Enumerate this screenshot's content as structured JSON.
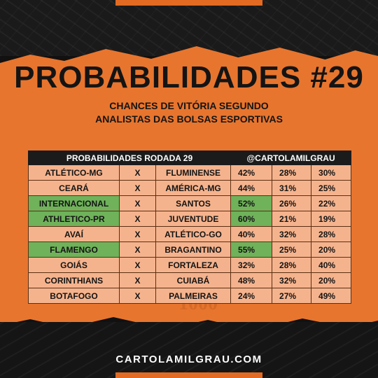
{
  "title": "PROBABILIDADES #29",
  "subtitle_line1": "CHANCES DE VITÓRIA SEGUNDO",
  "subtitle_line2": "ANALISTAS DAS BOLSAS ESPORTIVAS",
  "table": {
    "header_left": "PROBABILIDADES RODADA 29",
    "header_right": "@CARTOLAMILGRAU",
    "rows": [
      {
        "home": "ATLÉTICO-MG",
        "vs": "X",
        "away": "FLUMINENSE",
        "p1": "42%",
        "p2": "28%",
        "p3": "30%",
        "home_highlight": false,
        "p1_highlight": false
      },
      {
        "home": "CEARÁ",
        "vs": "X",
        "away": "AMÉRICA-MG",
        "p1": "44%",
        "p2": "31%",
        "p3": "25%",
        "home_highlight": false,
        "p1_highlight": false
      },
      {
        "home": "INTERNACIONAL",
        "vs": "X",
        "away": "SANTOS",
        "p1": "52%",
        "p2": "26%",
        "p3": "22%",
        "home_highlight": true,
        "p1_highlight": true
      },
      {
        "home": "ATHLETICO-PR",
        "vs": "X",
        "away": "JUVENTUDE",
        "p1": "60%",
        "p2": "21%",
        "p3": "19%",
        "home_highlight": true,
        "p1_highlight": true
      },
      {
        "home": "AVAÍ",
        "vs": "X",
        "away": "ATLÉTICO-GO",
        "p1": "40%",
        "p2": "32%",
        "p3": "28%",
        "home_highlight": false,
        "p1_highlight": false
      },
      {
        "home": "FLAMENGO",
        "vs": "X",
        "away": "BRAGANTINO",
        "p1": "55%",
        "p2": "25%",
        "p3": "20%",
        "home_highlight": true,
        "p1_highlight": true
      },
      {
        "home": "GOIÁS",
        "vs": "X",
        "away": "FORTALEZA",
        "p1": "32%",
        "p2": "28%",
        "p3": "40%",
        "home_highlight": false,
        "p1_highlight": false
      },
      {
        "home": "CORINTHIANS",
        "vs": "X",
        "away": "CUIABÁ",
        "p1": "48%",
        "p2": "32%",
        "p3": "20%",
        "home_highlight": false,
        "p1_highlight": false
      },
      {
        "home": "BOTAFOGO",
        "vs": "X",
        "away": "PALMEIRAS",
        "p1": "24%",
        "p2": "27%",
        "p3": "49%",
        "home_highlight": false,
        "p1_highlight": false
      }
    ]
  },
  "watermark_text": "1000º",
  "footer_site": "CARTOLAMILGRAU.COM",
  "colors": {
    "orange": "#e8752e",
    "dark": "#141414",
    "cell": "#f5b996",
    "highlight_green": "#6fb25a"
  }
}
